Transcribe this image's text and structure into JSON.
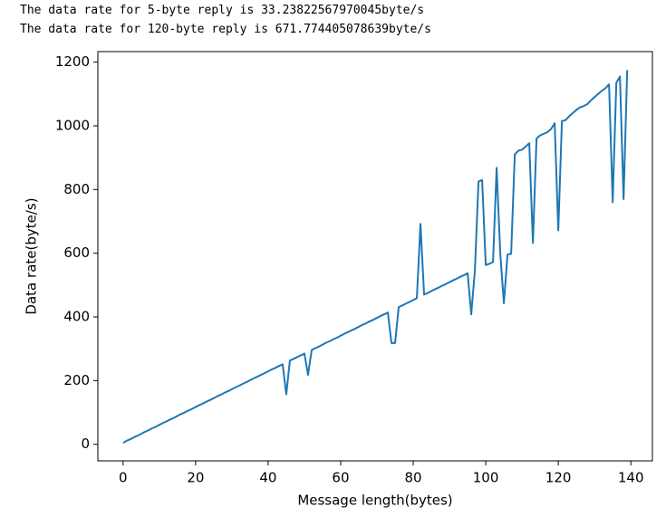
{
  "output_lines": [
    "The data rate for 5-byte reply is 33.23822567970045byte/s",
    "The data rate for 120-byte reply is 671.774405078639byte/s"
  ],
  "chart_data": {
    "type": "line",
    "xlabel": "Message length(bytes)",
    "ylabel": "Data rate(byte/s)",
    "x": [
      0,
      1,
      2,
      3,
      4,
      5,
      6,
      7,
      8,
      9,
      10,
      11,
      12,
      13,
      14,
      15,
      16,
      17,
      18,
      19,
      20,
      21,
      22,
      23,
      24,
      25,
      26,
      27,
      28,
      29,
      30,
      31,
      32,
      33,
      34,
      35,
      36,
      37,
      38,
      39,
      40,
      41,
      42,
      43,
      44,
      45,
      46,
      47,
      48,
      49,
      50,
      51,
      52,
      53,
      54,
      55,
      56,
      57,
      58,
      59,
      60,
      61,
      62,
      63,
      64,
      65,
      66,
      67,
      68,
      69,
      70,
      71,
      72,
      73,
      74,
      75,
      76,
      77,
      78,
      79,
      80,
      81,
      82,
      83,
      84,
      85,
      86,
      87,
      88,
      89,
      90,
      91,
      92,
      93,
      94,
      95,
      96,
      97,
      98,
      99,
      100,
      101,
      102,
      103,
      104,
      105,
      106,
      107,
      108,
      109,
      110,
      111,
      112,
      113,
      114,
      115,
      116,
      117,
      118,
      119,
      120,
      121,
      122,
      123,
      124,
      125,
      126,
      127,
      128,
      129,
      130,
      131,
      132,
      133,
      134,
      135,
      136,
      137,
      138,
      139
    ],
    "series": [
      {
        "color": "#1f77b4",
        "values": [
          5,
          11,
          16,
          22,
          27,
          33,
          39,
          44,
          50,
          55,
          61,
          67,
          72,
          78,
          83,
          89,
          95,
          100,
          106,
          111,
          117,
          123,
          128,
          134,
          139,
          145,
          151,
          156,
          162,
          167,
          173,
          179,
          184,
          190,
          195,
          201,
          207,
          212,
          218,
          223,
          229,
          235,
          240,
          246,
          251,
          157,
          263,
          268,
          274,
          279,
          285,
          218,
          296,
          302,
          307,
          313,
          319,
          324,
          330,
          335,
          341,
          347,
          352,
          358,
          363,
          369,
          375,
          380,
          386,
          391,
          397,
          403,
          408,
          414,
          318,
          318,
          431,
          436,
          442,
          447,
          453,
          459,
          692,
          470,
          475,
          481,
          487,
          492,
          498,
          503,
          509,
          515,
          520,
          526,
          531,
          537,
          408,
          545,
          825,
          830,
          563,
          567,
          572,
          868,
          600,
          443,
          596,
          598,
          910,
          922,
          925,
          935,
          945,
          632,
          960,
          970,
          975,
          980,
          990,
          1008,
          672,
          1015,
          1018,
          1030,
          1040,
          1050,
          1058,
          1062,
          1068,
          1080,
          1090,
          1100,
          1110,
          1118,
          1130,
          760,
          1135,
          1155,
          770,
          1175
        ]
      }
    ],
    "xlim": [
      -6.95,
      145.95
    ],
    "ylim": [
      -52,
      1233
    ],
    "xticks": [
      0,
      20,
      40,
      60,
      80,
      100,
      120,
      140
    ],
    "yticks": [
      0,
      200,
      400,
      600,
      800,
      1000,
      1200
    ],
    "grid": false
  }
}
